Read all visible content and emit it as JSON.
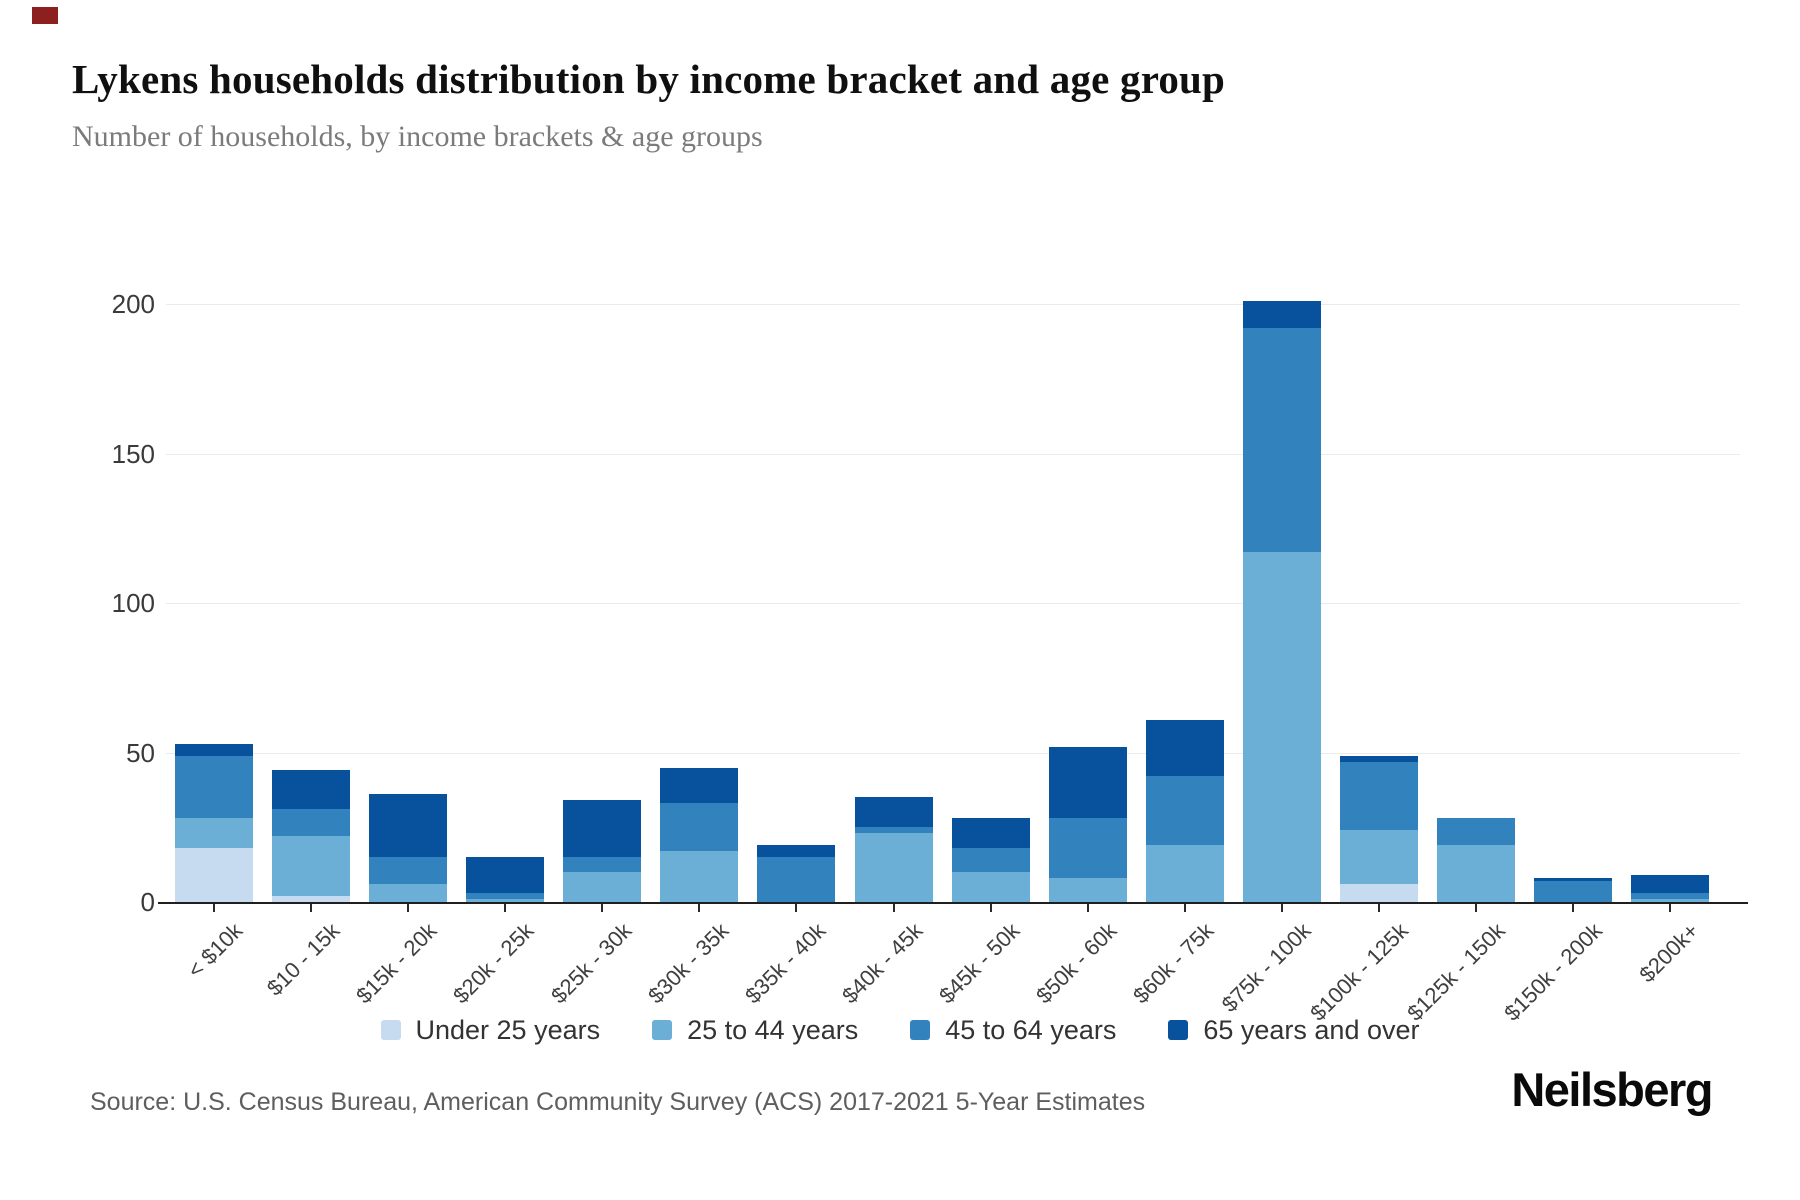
{
  "header": {
    "title": "Lykens households distribution by income bracket and age group",
    "subtitle": "Number of households, by income brackets & age groups"
  },
  "footer": {
    "source": "Source: U.S. Census Bureau, American Community Survey (ACS) 2017-2021 5-Year Estimates",
    "brand": "Neilsberg"
  },
  "chart_data": {
    "type": "bar",
    "stacked": true,
    "title": "Lykens households distribution by income bracket and age group",
    "xlabel": "",
    "ylabel": "Number of households",
    "ylim": [
      0,
      210
    ],
    "yticks": [
      0,
      50,
      100,
      150,
      200
    ],
    "grid": true,
    "legend_position": "bottom",
    "categories": [
      "< $10k",
      "$10 - 15k",
      "$15k - 20k",
      "$20k - 25k",
      "$25k - 30k",
      "$30k - 35k",
      "$35k - 40k",
      "$40k - 45k",
      "$45k - 50k",
      "$50k - 60k",
      "$60k - 75k",
      "$75k - 100k",
      "$100k - 125k",
      "$125k - 150k",
      "$150k - 200k",
      "$200k+"
    ],
    "series": [
      {
        "name": "Under 25 years",
        "color": "#c6dbef",
        "values": [
          18,
          2,
          0,
          0,
          0,
          0,
          0,
          0,
          0,
          0,
          0,
          0,
          6,
          0,
          0,
          0
        ]
      },
      {
        "name": "25 to 44 years",
        "color": "#6baed6",
        "values": [
          10,
          20,
          6,
          1,
          10,
          17,
          0,
          23,
          10,
          8,
          19,
          117,
          18,
          19,
          0,
          1
        ]
      },
      {
        "name": "45 to 64 years",
        "color": "#3182bd",
        "values": [
          21,
          9,
          9,
          2,
          5,
          16,
          15,
          2,
          8,
          20,
          23,
          75,
          23,
          9,
          7,
          2
        ]
      },
      {
        "name": "65 years and over",
        "color": "#08519c",
        "values": [
          4,
          13,
          21,
          12,
          19,
          12,
          4,
          10,
          10,
          24,
          19,
          9,
          2,
          0,
          1,
          6
        ]
      }
    ]
  }
}
